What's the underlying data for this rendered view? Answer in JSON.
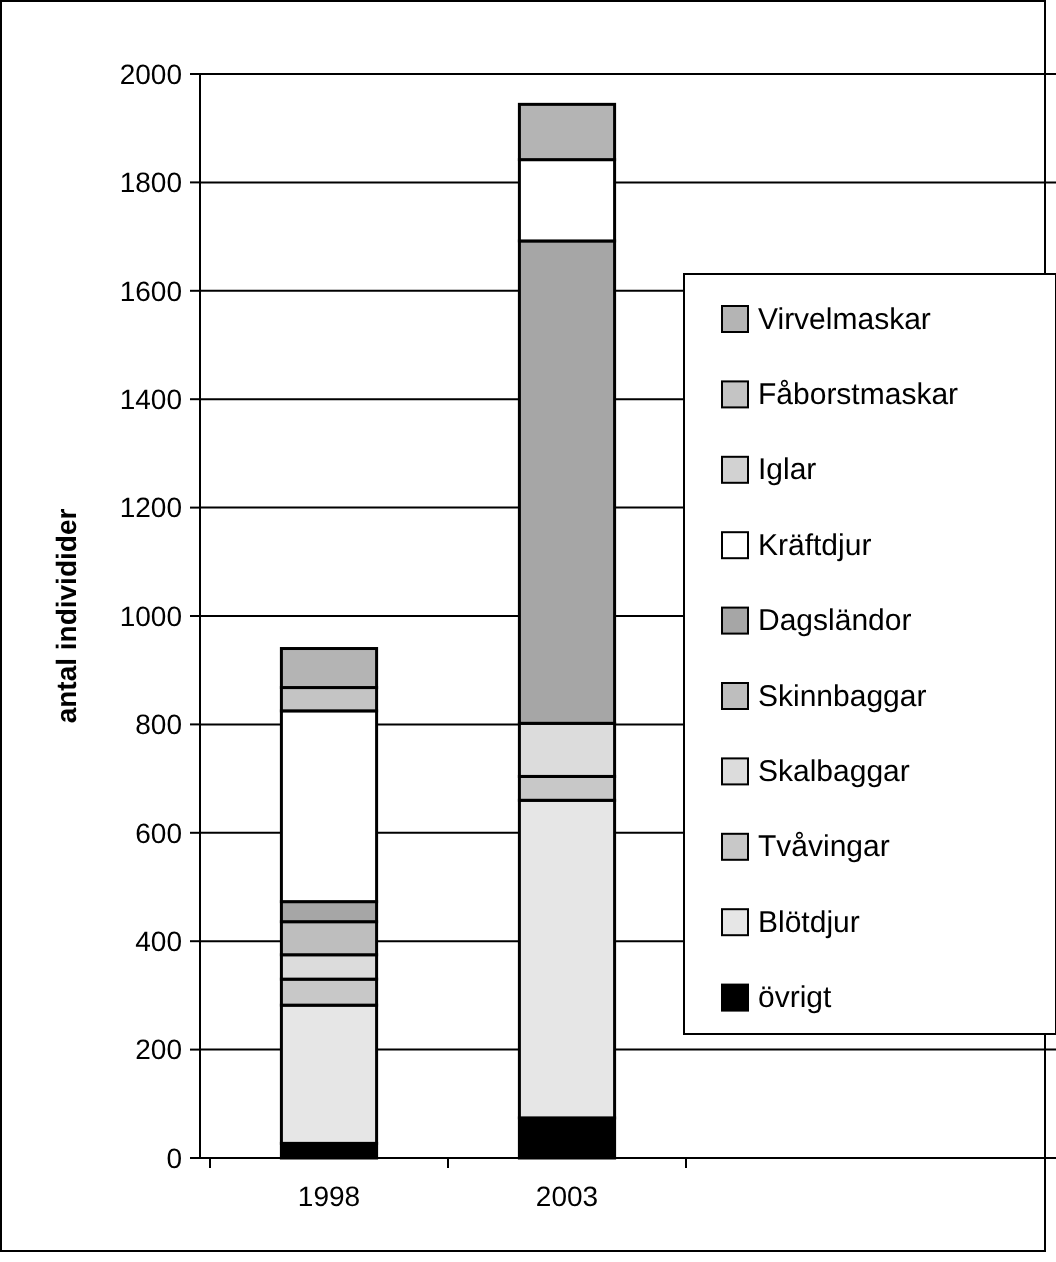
{
  "chart_data": {
    "type": "bar",
    "stacked": true,
    "ylabel": "antal individider",
    "categories": [
      "1998",
      "2003"
    ],
    "series": [
      {
        "name": "övrigt",
        "color": "#000000",
        "values": [
          27,
          74
        ]
      },
      {
        "name": "Blötdjur",
        "color": "#e6e6e6",
        "values": [
          255,
          586
        ]
      },
      {
        "name": "Tvåvingar",
        "color": "#c8c8c8",
        "values": [
          48,
          44
        ]
      },
      {
        "name": "Skalbaggar",
        "color": "#dcdcdc",
        "values": [
          45,
          98
        ]
      },
      {
        "name": "Skinnbaggar",
        "color": "#bebebe",
        "values": [
          61,
          0
        ]
      },
      {
        "name": "Dagsländor",
        "color": "#a6a6a6",
        "values": [
          37,
          890
        ]
      },
      {
        "name": "Kräftdjur",
        "color": "#ffffff",
        "values": [
          352,
          150
        ]
      },
      {
        "name": "Iglar",
        "color": "#d2d2d2",
        "values": [
          0,
          0
        ]
      },
      {
        "name": "Fåborstmaskar",
        "color": "#c4c4c4",
        "values": [
          43,
          0
        ]
      },
      {
        "name": "Virvelmaskar",
        "color": "#b4b4b4",
        "values": [
          72,
          102
        ]
      }
    ],
    "ylim": [
      0,
      2000
    ],
    "yticks": [
      0,
      200,
      400,
      600,
      800,
      1000,
      1200,
      1400,
      1600,
      1800,
      2000
    ],
    "grid": "y",
    "legend": "right"
  }
}
